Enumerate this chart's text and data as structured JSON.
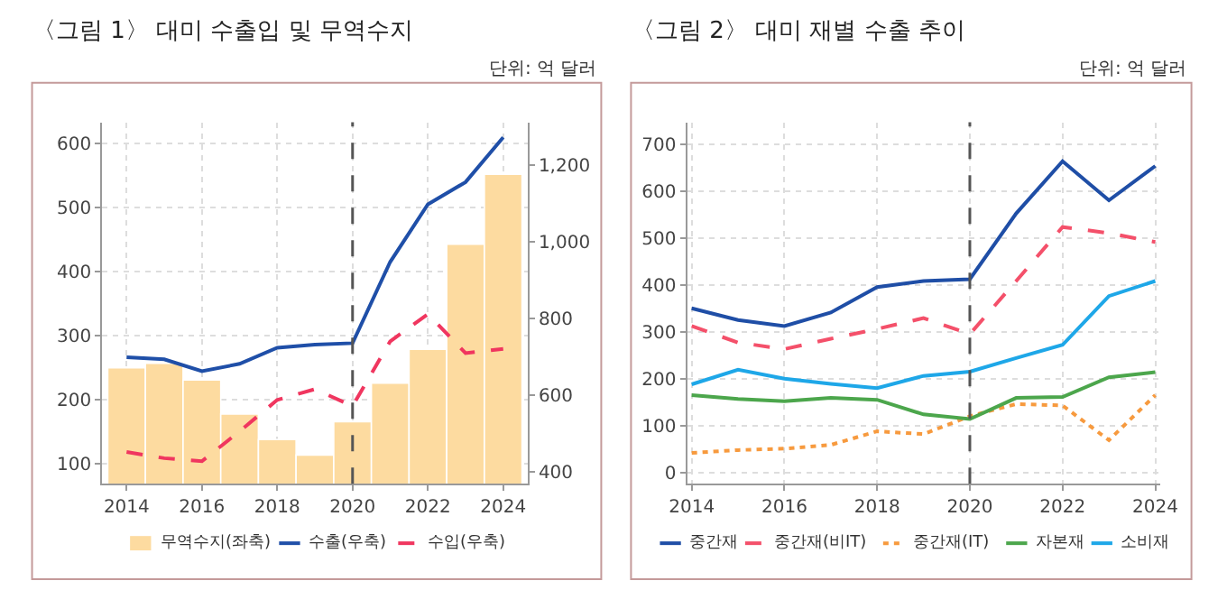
{
  "chart_data": [
    {
      "type": "line",
      "title": "〈그림 1〉 대미 수출입 및 무역수지",
      "annotations": [
        "단위: 억 달러"
      ],
      "x": [
        2014,
        2015,
        2016,
        2017,
        2018,
        2019,
        2020,
        2021,
        2022,
        2023,
        2024
      ],
      "series": [
        {
          "name": "무역수지(좌축)",
          "type": "bar",
          "color": "#fddba0",
          "values": [
            250,
            257,
            231,
            178,
            138,
            114,
            166,
            226,
            279,
            443,
            552
          ]
        },
        {
          "name": "수출(우축)",
          "axis": "y2",
          "color": "#1f4fa8",
          "line_style": "solid",
          "values": [
            699,
            694,
            663,
            682,
            724,
            732,
            736,
            948,
            1098,
            1156,
            1273
          ]
        },
        {
          "name": "수입(우축)",
          "axis": "y2",
          "color": "#f0365f",
          "line_style": "dashed",
          "values": [
            452,
            436,
            428,
            506,
            588,
            616,
            572,
            741,
            812,
            710,
            721
          ]
        }
      ],
      "xlim": [
        2013.35,
        2024.65
      ],
      "xticks": [
        2014,
        2016,
        2018,
        2020,
        2022,
        2024
      ],
      "ylim": [
        69,
        633
      ],
      "yticks": [
        100,
        200,
        300,
        400,
        500,
        600
      ],
      "y2lim": [
        369,
        1312
      ],
      "y2ticks": [
        {
          "value": 400,
          "label": "400"
        },
        {
          "value": 600,
          "label": "600"
        },
        {
          "value": 800,
          "label": "800"
        },
        {
          "value": 1000,
          "label": "1,000"
        },
        {
          "value": 1200,
          "label": "1,200"
        }
      ],
      "ref_lines": [
        {
          "axis": "x",
          "value": 2020,
          "color": "#555555",
          "line_style": "dashed"
        }
      ],
      "grid": true,
      "legend": "bottom"
    },
    {
      "type": "line",
      "title": "〈그림 2〉 대미 재별 수출 추이",
      "annotations": [
        "단위: 억 달러"
      ],
      "x": [
        2014,
        2015,
        2016,
        2017,
        2018,
        2019,
        2020,
        2021,
        2022,
        2023,
        2024
      ],
      "series": [
        {
          "name": "중간재",
          "color": "#1f4ea6",
          "line_style": "solid",
          "values": [
            351,
            326,
            313,
            342,
            396,
            409,
            413,
            553,
            664,
            581,
            654
          ]
        },
        {
          "name": "중간재(비IT)",
          "color": "#f4506a",
          "line_style": "dashed",
          "values": [
            313,
            278,
            264,
            286,
            307,
            330,
            296,
            409,
            524,
            511,
            492
          ]
        },
        {
          "name": "중간재(IT)",
          "color": "#f79a3e",
          "line_style": "dotted",
          "values": [
            43,
            49,
            52,
            60,
            89,
            83,
            121,
            147,
            144,
            70,
            166
          ]
        },
        {
          "name": "자본재",
          "color": "#4ca64c",
          "line_style": "solid",
          "values": [
            166,
            158,
            153,
            160,
            156,
            125,
            115,
            160,
            162,
            204,
            215
          ]
        },
        {
          "name": "소비재",
          "color": "#1ea7e8",
          "line_style": "solid",
          "values": [
            189,
            220,
            201,
            190,
            181,
            207,
            216,
            245,
            273,
            377,
            409
          ]
        }
      ],
      "xlim": [
        2013.9,
        2024.1
      ],
      "xticks": [
        2014,
        2016,
        2018,
        2020,
        2022,
        2024
      ],
      "ylim": [
        -23,
        747
      ],
      "yticks": [
        0,
        100,
        200,
        300,
        400,
        500,
        600,
        700
      ],
      "ref_lines": [
        {
          "axis": "x",
          "value": 2020,
          "color": "#555555",
          "line_style": "dashed"
        }
      ],
      "grid": true,
      "legend": "bottom"
    }
  ]
}
